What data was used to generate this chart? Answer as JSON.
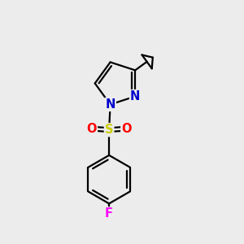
{
  "background_color": "#ececec",
  "bond_color": "#000000",
  "bond_width": 1.6,
  "atom_colors": {
    "N": "#0000cc",
    "S": "#cccc00",
    "O": "#ff0000",
    "F": "#ff00ff",
    "C": "#000000"
  },
  "font_size_atoms": 10.5
}
